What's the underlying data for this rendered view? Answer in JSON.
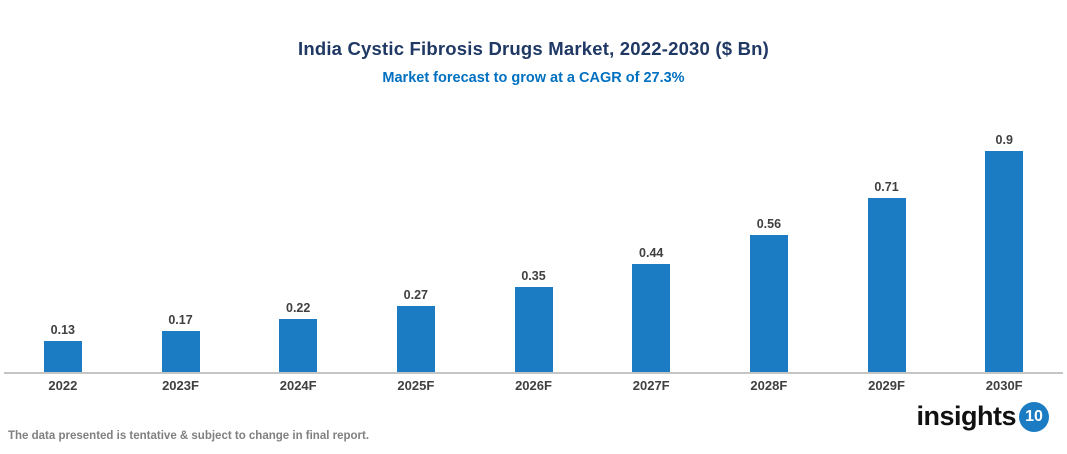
{
  "header": {
    "title": "India Cystic Fibrosis Drugs Market, 2022-2030 ($ Bn)",
    "subtitle": "Market forecast to grow at a CAGR of 27.3%"
  },
  "chart_data": {
    "type": "bar",
    "title": "India Cystic Fibrosis Drugs Market, 2022-2030 ($ Bn)",
    "subtitle": "Market forecast to grow at a CAGR of 27.3%",
    "categories": [
      "2022",
      "2023F",
      "2024F",
      "2025F",
      "2026F",
      "2027F",
      "2028F",
      "2029F",
      "2030F"
    ],
    "values": [
      0.13,
      0.17,
      0.22,
      0.27,
      0.35,
      0.44,
      0.56,
      0.71,
      0.9
    ],
    "value_labels": [
      "0.13",
      "0.17",
      "0.22",
      "0.27",
      "0.35",
      "0.44",
      "0.56",
      "0.71",
      "0.9"
    ],
    "xlabel": "",
    "ylabel": "",
    "ylim": [
      0,
      0.95
    ],
    "grid": false,
    "legend": "none",
    "bar_color": "#1B7CC3"
  },
  "footer": {
    "disclaimer": "The data presented is tentative & subject to change in final report.",
    "logo_text": "insights",
    "logo_badge": "10"
  },
  "colors": {
    "title": "#1F3864",
    "subtitle": "#0070C0",
    "bar": "#1B7CC3",
    "axis_line": "#C5C5C5",
    "label": "#404040",
    "footer_text": "#808080",
    "logo_badge_bg": "#1B7CC3"
  }
}
